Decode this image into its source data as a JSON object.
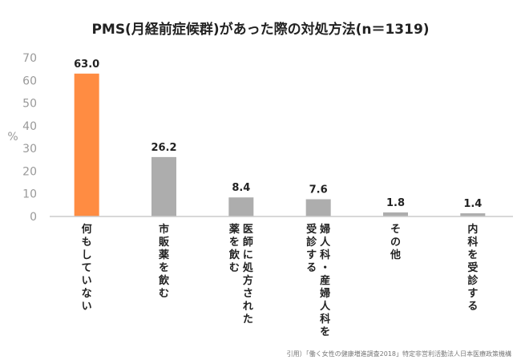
{
  "chart_data": {
    "type": "bar",
    "title": "PMS(月経前症候群)があった際の対処方法(n＝1319)",
    "ylabel": "%",
    "ylim": [
      0,
      70
    ],
    "yticks": [
      0,
      10,
      20,
      30,
      40,
      50,
      60,
      70
    ],
    "categories": [
      [
        "何もしていない"
      ],
      [
        "市販薬を飲む"
      ],
      [
        "医師に処方された",
        "薬を飲む"
      ],
      [
        "婦人科・産婦人科を",
        "受診する"
      ],
      [
        "その他"
      ],
      [
        "内科を受診する"
      ]
    ],
    "values": [
      63.0,
      26.2,
      8.4,
      7.6,
      1.8,
      1.4
    ],
    "value_labels": [
      "63.0",
      "26.2",
      "8.4",
      "7.6",
      "1.8",
      "1.4"
    ],
    "highlight_index": 0,
    "colors": {
      "highlight": "#ff8c42",
      "bar": "#adadad",
      "axis": "#cccccc",
      "tick": "#999999"
    },
    "grid": false
  },
  "source": "引用）「働く女性の健康増進調査2018」特定非営利活動法人日本医療政策機構"
}
